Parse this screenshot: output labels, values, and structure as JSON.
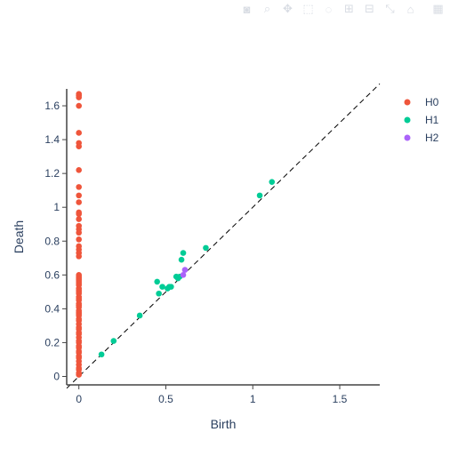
{
  "modebar": {
    "icons": [
      "camera-icon",
      "zoom-icon",
      "pan-icon",
      "box-select-icon",
      "lasso-icon",
      "zoom-in-icon",
      "zoom-out-icon",
      "autoscale-icon",
      "home-icon",
      "plotly-logo-icon"
    ]
  },
  "chart_data": {
    "type": "scatter",
    "title": "",
    "xlabel": "Birth",
    "ylabel": "Death",
    "xlim": [
      -0.07,
      1.73
    ],
    "ylim": [
      -0.05,
      1.7
    ],
    "xticks": [
      0,
      0.5,
      1,
      1.5
    ],
    "xtick_labels": [
      "0",
      "0.5",
      "1",
      "1.5"
    ],
    "yticks": [
      0,
      0.2,
      0.4,
      0.6,
      0.8,
      1.0,
      1.2,
      1.4,
      1.6
    ],
    "ytick_labels": [
      "0",
      "0.2",
      "0.4",
      "0.6",
      "0.8",
      "1",
      "1.2",
      "1.4",
      "1.6"
    ],
    "diagonal": {
      "from": [
        -0.07,
        -0.07
      ],
      "to": [
        1.73,
        1.73
      ],
      "style": "dashed"
    },
    "grid": false,
    "legend_position": "top-right",
    "series": [
      {
        "name": "H0",
        "color": "#ef553b",
        "points": [
          [
            0,
            1.67
          ],
          [
            0,
            1.66
          ],
          [
            0,
            1.65
          ],
          [
            0,
            1.6
          ],
          [
            0,
            1.44
          ],
          [
            0,
            1.38
          ],
          [
            0,
            1.36
          ],
          [
            0,
            1.22
          ],
          [
            0,
            1.12
          ],
          [
            0,
            1.07
          ],
          [
            0,
            1.03
          ],
          [
            0,
            0.97
          ],
          [
            0,
            0.96
          ],
          [
            0,
            0.93
          ],
          [
            0,
            0.89
          ],
          [
            0,
            0.87
          ],
          [
            0,
            0.85
          ],
          [
            0,
            0.81
          ],
          [
            0,
            0.77
          ],
          [
            0,
            0.75
          ],
          [
            0,
            0.73
          ],
          [
            0,
            0.71
          ],
          [
            0,
            0.6
          ],
          [
            0,
            0.59
          ],
          [
            0,
            0.58
          ],
          [
            0,
            0.57
          ],
          [
            0,
            0.56
          ],
          [
            0,
            0.55
          ],
          [
            0,
            0.54
          ],
          [
            0,
            0.52
          ],
          [
            0,
            0.51
          ],
          [
            0,
            0.5
          ],
          [
            0,
            0.49
          ],
          [
            0,
            0.47
          ],
          [
            0,
            0.46
          ],
          [
            0,
            0.45
          ],
          [
            0,
            0.43
          ],
          [
            0,
            0.42
          ],
          [
            0,
            0.41
          ],
          [
            0,
            0.39
          ],
          [
            0,
            0.38
          ],
          [
            0,
            0.37
          ],
          [
            0,
            0.36
          ],
          [
            0,
            0.34
          ],
          [
            0,
            0.33
          ],
          [
            0,
            0.31
          ],
          [
            0,
            0.29
          ],
          [
            0,
            0.28
          ],
          [
            0,
            0.26
          ],
          [
            0,
            0.25
          ],
          [
            0,
            0.23
          ],
          [
            0,
            0.21
          ],
          [
            0,
            0.2
          ],
          [
            0,
            0.18
          ],
          [
            0,
            0.17
          ],
          [
            0,
            0.15
          ],
          [
            0,
            0.14
          ],
          [
            0,
            0.12
          ],
          [
            0,
            0.11
          ],
          [
            0,
            0.09
          ],
          [
            0,
            0.07
          ],
          [
            0,
            0.05
          ],
          [
            0,
            0.04
          ],
          [
            0,
            0.02
          ],
          [
            0,
            0.01
          ]
        ]
      },
      {
        "name": "H1",
        "color": "#00cc96",
        "points": [
          [
            0.13,
            0.13
          ],
          [
            0.2,
            0.21
          ],
          [
            0.35,
            0.36
          ],
          [
            0.45,
            0.56
          ],
          [
            0.46,
            0.49
          ],
          [
            0.48,
            0.53
          ],
          [
            0.51,
            0.52
          ],
          [
            0.52,
            0.53
          ],
          [
            0.53,
            0.53
          ],
          [
            0.56,
            0.59
          ],
          [
            0.57,
            0.58
          ],
          [
            0.58,
            0.59
          ],
          [
            0.59,
            0.69
          ],
          [
            0.6,
            0.73
          ],
          [
            0.73,
            0.76
          ],
          [
            1.04,
            1.07
          ],
          [
            1.11,
            1.15
          ]
        ]
      },
      {
        "name": "H2",
        "color": "#ab63fa",
        "points": [
          [
            0.6,
            0.6
          ],
          [
            0.61,
            0.63
          ]
        ]
      }
    ]
  }
}
